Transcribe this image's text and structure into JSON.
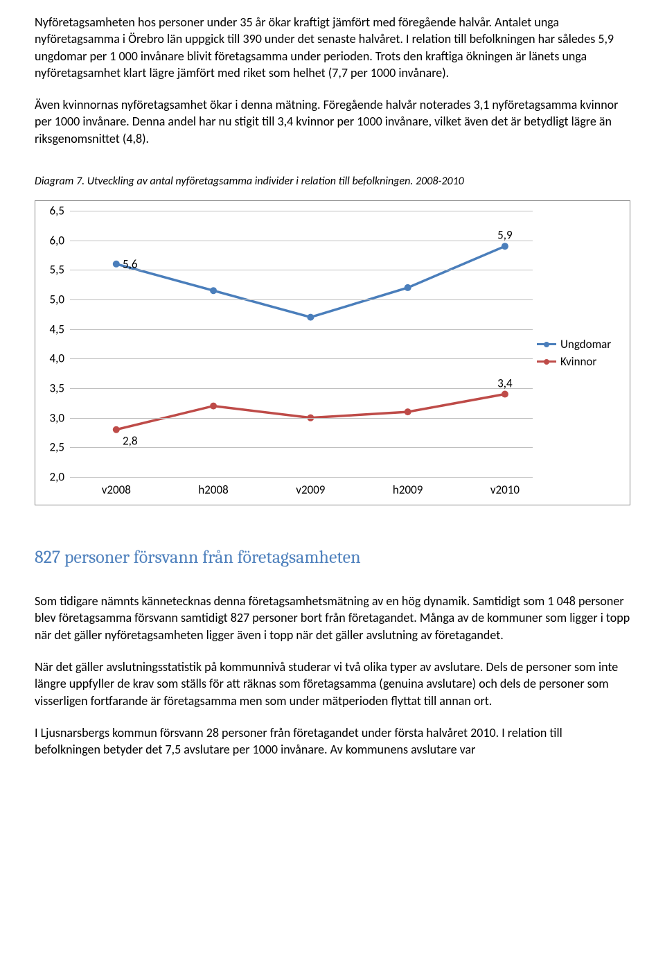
{
  "paragraphs": {
    "p1": "Nyföretagsamheten hos personer under 35 år ökar kraftigt jämfört med föregående halvår. Antalet unga nyföretagsamma i Örebro län uppgick till 390 under det senaste halvåret. I relation till befolkningen har således 5,9 ungdomar per 1 000 invånare blivit företagsamma under perioden. Trots den kraftiga ökningen är länets unga nyföretagsamhet klart lägre jämfört med riket som helhet (7,7 per 1000 invånare).",
    "p2": "Även kvinnornas nyföretagsamhet ökar i denna mätning. Föregående halvår noterades 3,1 nyföretagsamma kvinnor per 1000 invånare. Denna andel har nu stigit till 3,4 kvinnor per 1000 invånare, vilket även det är betydligt lägre än riksgenomsnittet (4,8).",
    "p3": "Som tidigare nämnts kännetecknas denna företagsamhetsmätning av en hög dynamik. Samtidigt som 1 048 personer blev företagsamma försvann samtidigt 827 personer bort från företagandet. Många av de kommuner som ligger i topp när det gäller nyföretagsamheten ligger även i topp när det gäller avslutning av företagandet.",
    "p4": "När det gäller avslutningsstatistik på kommunnivå studerar vi två olika typer av avslutare. Dels de personer som inte längre uppfyller de krav som ställs för att räknas som företagsamma (genuina avslutare) och dels de personer som visserligen fortfarande är företagsamma men som under mätperioden flyttat till annan ort.",
    "p5": "I Ljusnarsbergs kommun försvann 28 personer från företagandet under första halvåret 2010. I relation till befolkningen betyder det 7,5 avslutare per 1000 invånare. Av kommunens avslutare var"
  },
  "caption": "Diagram 7. Utveckling av antal nyföretagsamma individer i relation till befolkningen. 2008-2010",
  "section_heading": "827 personer försvann från företagsamheten",
  "chart": {
    "type": "line",
    "ylim": [
      2.0,
      6.5
    ],
    "yticks": [
      "6,5",
      "6,0",
      "5,5",
      "5,0",
      "4,5",
      "4,0",
      "3,5",
      "3,0",
      "2,5",
      "2,0"
    ],
    "ytick_values": [
      6.5,
      6.0,
      5.5,
      5.0,
      4.5,
      4.0,
      3.5,
      3.0,
      2.5,
      2.0
    ],
    "categories": [
      "v2008",
      "h2008",
      "v2009",
      "h2009",
      "v2010"
    ],
    "grid_color": "#bfbfbf",
    "background": "#ffffff",
    "series": [
      {
        "name": "Ungdomar",
        "color": "#4a7ebb",
        "values": [
          5.6,
          5.15,
          4.7,
          5.2,
          5.9
        ],
        "line_width": 3.5,
        "marker_size": 5,
        "labels": [
          {
            "i": 0,
            "text": "5,6",
            "dx": 20,
            "dy": 0
          },
          {
            "i": 4,
            "text": "5,9",
            "dx": 0,
            "dy": -16
          }
        ]
      },
      {
        "name": "Kvinnor",
        "color": "#be4b48",
        "values": [
          2.8,
          3.2,
          3.0,
          3.1,
          3.4
        ],
        "line_width": 3.5,
        "marker_size": 5,
        "labels": [
          {
            "i": 0,
            "text": "2,8",
            "dx": 20,
            "dy": 16
          },
          {
            "i": 4,
            "text": "3,4",
            "dx": 0,
            "dy": -16
          }
        ]
      }
    ],
    "legend_labels": [
      "Ungdomar",
      "Kvinnor"
    ]
  }
}
